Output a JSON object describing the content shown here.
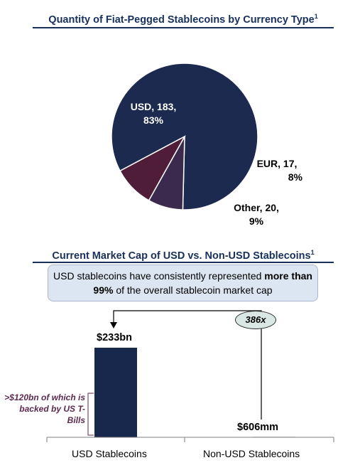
{
  "chart_data": [
    {
      "type": "pie",
      "title": "Quantity of Fiat-Pegged Stablecoins by Currency Type",
      "title_footnote": "1",
      "slices": [
        {
          "label": "USD",
          "value": 183,
          "percent": "83%",
          "display": [
            "USD, 183,",
            "83%"
          ],
          "color": "#1b2a4e"
        },
        {
          "label": "EUR",
          "value": 17,
          "percent": "8%",
          "display": [
            "EUR, 17,",
            "8%"
          ],
          "color": "#3b2a4e"
        },
        {
          "label": "Other",
          "value": 20,
          "percent": "9%",
          "display": [
            "Other, 20,",
            "9%"
          ],
          "color": "#4f1c3a"
        }
      ]
    },
    {
      "type": "bar",
      "title": "Current Market Cap of USD vs. Non-USD Stablecoins",
      "title_footnote": "1",
      "categories": [
        "USD Stablecoins",
        "Non-USD Stablecoins"
      ],
      "values_bn": [
        233,
        0.606
      ],
      "value_labels": [
        "$233bn",
        "$606mm"
      ],
      "bar_color": "#17284c",
      "multiple_label": "386x",
      "callout": {
        "text_before": "USD stablecoins have consistently represented ",
        "text_bold": "more than 99%",
        "text_after": " of the overall stablecoin market cap"
      },
      "annotation": ">$120bn of which is backed by US T-Bills"
    }
  ]
}
